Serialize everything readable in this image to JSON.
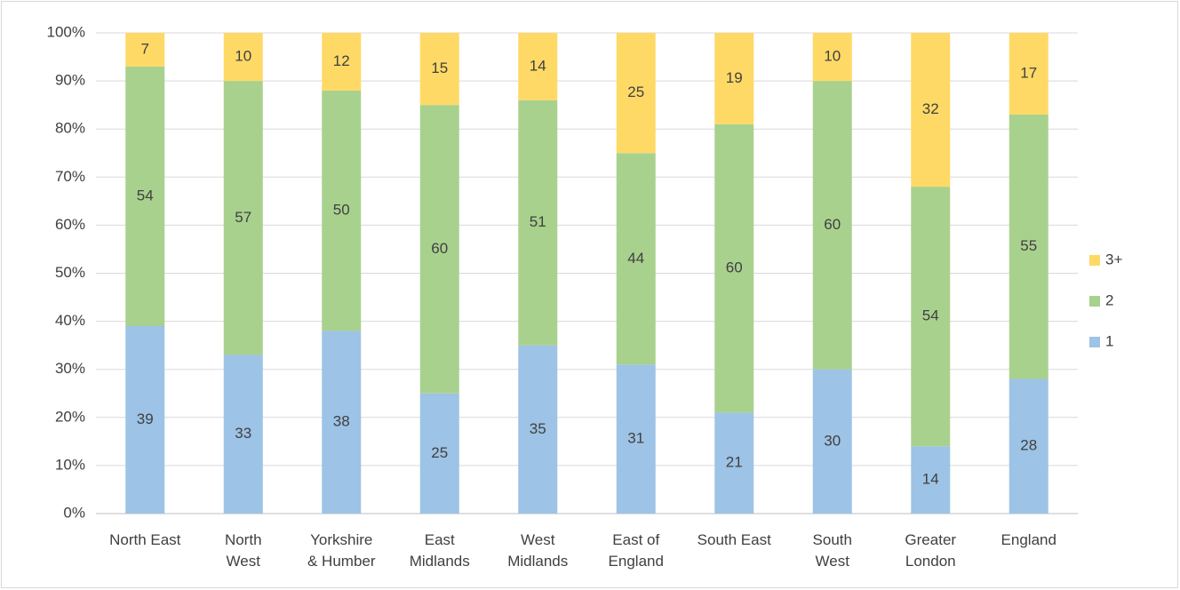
{
  "chart_data": {
    "type": "stacked_bar",
    "categories": [
      "North East",
      "North\nWest",
      "Yorkshire\n& Humber",
      "East\nMidlands",
      "West\nMidlands",
      "East of\nEngland",
      "South East",
      "South\nWest",
      "Greater\nLondon",
      "England"
    ],
    "series": [
      {
        "name": "1",
        "color": "#9dc3e6",
        "values": [
          39,
          33,
          38,
          25,
          35,
          31,
          21,
          30,
          14,
          28
        ]
      },
      {
        "name": "2",
        "color": "#a9d18e",
        "values": [
          54,
          57,
          50,
          60,
          51,
          44,
          60,
          60,
          54,
          55
        ]
      },
      {
        "name": "3+",
        "color": "#ffd966",
        "values": [
          7,
          10,
          12,
          15,
          14,
          25,
          19,
          10,
          32,
          17
        ]
      }
    ],
    "ylim": [
      0,
      100
    ],
    "yticks": [
      {
        "value": 0,
        "label": "0%"
      },
      {
        "value": 10,
        "label": "10%"
      },
      {
        "value": 20,
        "label": "20%"
      },
      {
        "value": 30,
        "label": "30%"
      },
      {
        "value": 40,
        "label": "40%"
      },
      {
        "value": 50,
        "label": "50%"
      },
      {
        "value": 60,
        "label": "60%"
      },
      {
        "value": 70,
        "label": "70%"
      },
      {
        "value": 80,
        "label": "80%"
      },
      {
        "value": 90,
        "label": "90%"
      },
      {
        "value": 100,
        "label": "100%"
      }
    ],
    "grid": true,
    "legend": "right"
  }
}
